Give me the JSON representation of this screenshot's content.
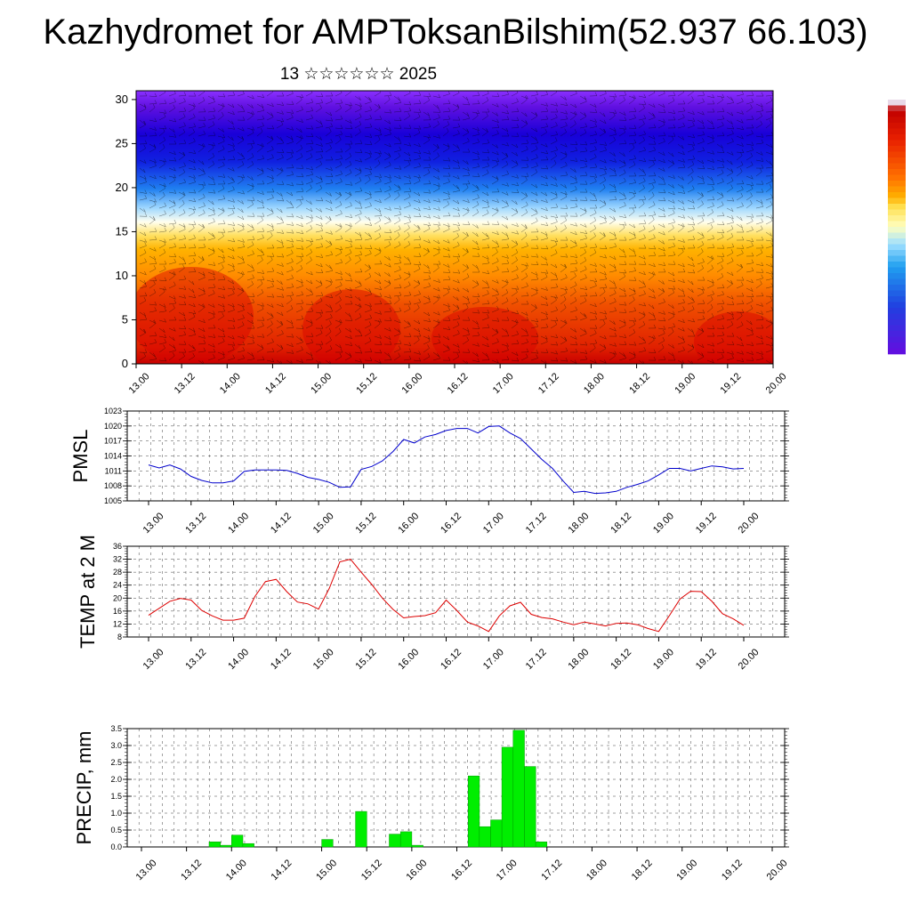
{
  "title": "Kazhydromet for AMPToksanBilshim(52.937 66.103)",
  "subtitle": "13 ☆☆☆☆☆☆ 2025",
  "colors": {
    "pmsl_line": "#0000cc",
    "temp_line": "#dd0000",
    "precip_bar": "#00ee00",
    "precip_bar_edge": "#009900"
  },
  "time_ticks": [
    "13.00",
    "13.12",
    "14.00",
    "14.12",
    "15.00",
    "15.12",
    "16.00",
    "16.12",
    "17.00",
    "17.12",
    "18.00",
    "18.12",
    "19.00",
    "19.12",
    "20.00"
  ],
  "chart_data": [
    {
      "type": "heatmap",
      "title": "",
      "xlabel": "",
      "ylabel": "",
      "x_ticks": [
        "13.00",
        "13.12",
        "14.00",
        "14.12",
        "15.00",
        "15.12",
        "16.00",
        "16.12",
        "17.00",
        "17.12",
        "18.00",
        "18.12",
        "19.00",
        "19.12",
        "20.00"
      ],
      "y_ticks": [
        "0",
        "5",
        "10",
        "15",
        "20",
        "25",
        "30"
      ],
      "ylim": [
        0,
        31
      ],
      "colorbar": [
        "#e8d8e8",
        "#c00000",
        "#e82000",
        "#ff7000",
        "#ffb000",
        "#ffe050",
        "#ffffc0",
        "#a0e0ff",
        "#20a0f0",
        "#2040e0",
        "#6010e0"
      ],
      "overlay": "wind barbs"
    },
    {
      "type": "line",
      "title": "",
      "ylabel": "PMSL",
      "ylim": [
        1005,
        1023
      ],
      "y_ticks": [
        "1005",
        "1008",
        "1011",
        "1014",
        "1017",
        "1020",
        "1023"
      ],
      "x": [
        0,
        3,
        6,
        9,
        12,
        15,
        18,
        21,
        24,
        27,
        30,
        33,
        36,
        39,
        42,
        45,
        48,
        51,
        54,
        57,
        60,
        63,
        66,
        69,
        72,
        75,
        78,
        81,
        84,
        87,
        90,
        93,
        96,
        99,
        102,
        105,
        108,
        111,
        114,
        117,
        120,
        123,
        126,
        129,
        132,
        135,
        138,
        141,
        144,
        147,
        150,
        153,
        156,
        159,
        162,
        165,
        168
      ],
      "series": [
        {
          "values": [
            1012.2,
            1011.6,
            1012.2,
            1011.4,
            1009.9,
            1009.1,
            1008.6,
            1008.6,
            1009.0,
            1010.9,
            1011.2,
            1011.2,
            1011.2,
            1011.1,
            1010.5,
            1009.7,
            1009.3,
            1008.7,
            1007.7,
            1007.8,
            1011.3,
            1011.9,
            1013.0,
            1014.9,
            1017.3,
            1016.6,
            1017.8,
            1018.3,
            1019.1,
            1019.5,
            1019.5,
            1018.6,
            1019.9,
            1020.0,
            1018.6,
            1017.5,
            1015.4,
            1013.3,
            1011.5,
            1009.0,
            1006.7,
            1006.9,
            1006.5,
            1006.6,
            1006.9,
            1007.7,
            1008.3,
            1009.0,
            1010.2,
            1011.5,
            1011.5,
            1011.0,
            1011.5,
            1012.0,
            1011.8,
            1011.4,
            1011.5
          ]
        }
      ]
    },
    {
      "type": "line",
      "title": "",
      "ylabel": "TEMP at 2 M",
      "ylim": [
        8,
        36
      ],
      "y_ticks": [
        "8",
        "12",
        "16",
        "20",
        "24",
        "28",
        "32",
        "36"
      ],
      "x": [
        0,
        6,
        9,
        12,
        15,
        18,
        21,
        24,
        27,
        30,
        33,
        36,
        39,
        42,
        45,
        48,
        51,
        54,
        57,
        60,
        63,
        66,
        69,
        72,
        75,
        78,
        81,
        84,
        87,
        90,
        93,
        96,
        99,
        102,
        105,
        108,
        111,
        114,
        117,
        120,
        123,
        126,
        129,
        132,
        135,
        138,
        141,
        144,
        147,
        150,
        153,
        156,
        159,
        162,
        165,
        168
      ],
      "series": [
        {
          "values": [
            14.7,
            19.0,
            19.9,
            19.4,
            16.2,
            14.5,
            13.2,
            13.2,
            13.8,
            20.5,
            25.1,
            25.8,
            22.0,
            18.8,
            18.2,
            16.6,
            23.0,
            31.2,
            32.0,
            28.0,
            24.2,
            20.0,
            16.5,
            13.9,
            14.3,
            14.6,
            15.5,
            19.4,
            16.2,
            12.6,
            11.4,
            9.7,
            14.5,
            17.6,
            18.7,
            15.0,
            14.0,
            13.6,
            12.6,
            11.8,
            12.6,
            12.0,
            11.4,
            12.2,
            12.3,
            11.8,
            10.6,
            9.7,
            14.6,
            19.7,
            22.1,
            22.0,
            19.0,
            15.2,
            13.6,
            11.6
          ]
        }
      ]
    },
    {
      "type": "bar",
      "title": "",
      "ylabel": "PRECIP, mm",
      "ylim": [
        0,
        3.5
      ],
      "y_ticks": [
        "0.0",
        "0.5",
        "1.0",
        "1.5",
        "2.0",
        "2.5",
        "3.0",
        "3.5"
      ],
      "x_start": [
        18,
        21,
        24,
        27,
        48,
        57,
        66,
        69,
        72,
        87,
        90,
        93,
        96,
        99,
        102,
        105
      ],
      "values": [
        0.15,
        0.05,
        0.35,
        0.1,
        0.22,
        1.05,
        0.38,
        0.45,
        0.05,
        2.1,
        0.6,
        0.8,
        2.95,
        3.45,
        2.38,
        0.15
      ]
    }
  ]
}
